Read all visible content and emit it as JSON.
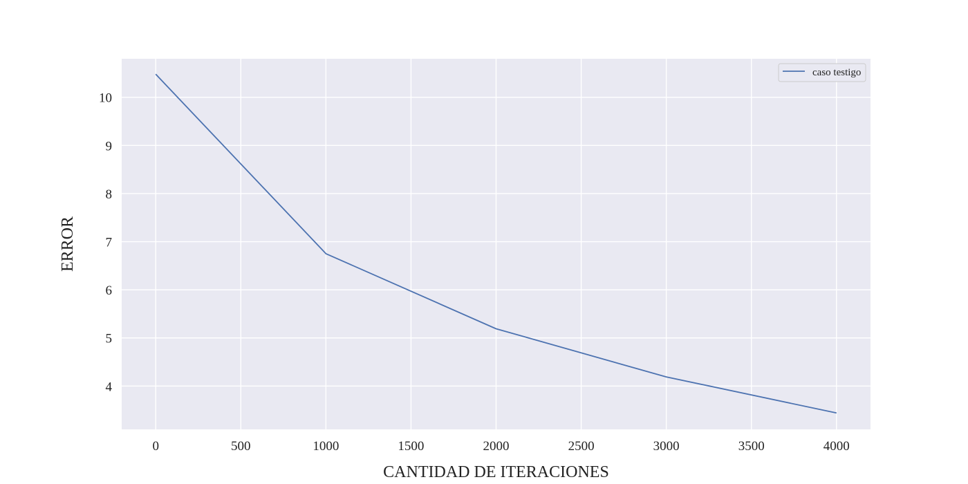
{
  "chart_data": {
    "type": "line",
    "title": "",
    "xlabel": "CANTIDAD DE ITERACIONES",
    "ylabel": "ERROR",
    "x": [
      0,
      1000,
      2000,
      3000,
      4000
    ],
    "series": [
      {
        "name": "caso testigo",
        "values": [
          10.48,
          6.75,
          5.19,
          4.19,
          3.44
        ]
      }
    ],
    "xlim": [
      -200,
      4200
    ],
    "ylim": [
      3.1,
      10.8
    ],
    "xticks": [
      0,
      500,
      1000,
      1500,
      2000,
      2500,
      3000,
      3500,
      4000
    ],
    "yticks": [
      4,
      5,
      6,
      7,
      8,
      9,
      10
    ],
    "grid": true,
    "legend_position": "top-right",
    "colors": {
      "plot_background": "#e9e9f2",
      "grid": "#ffffff",
      "series": "#4c72b0"
    }
  }
}
